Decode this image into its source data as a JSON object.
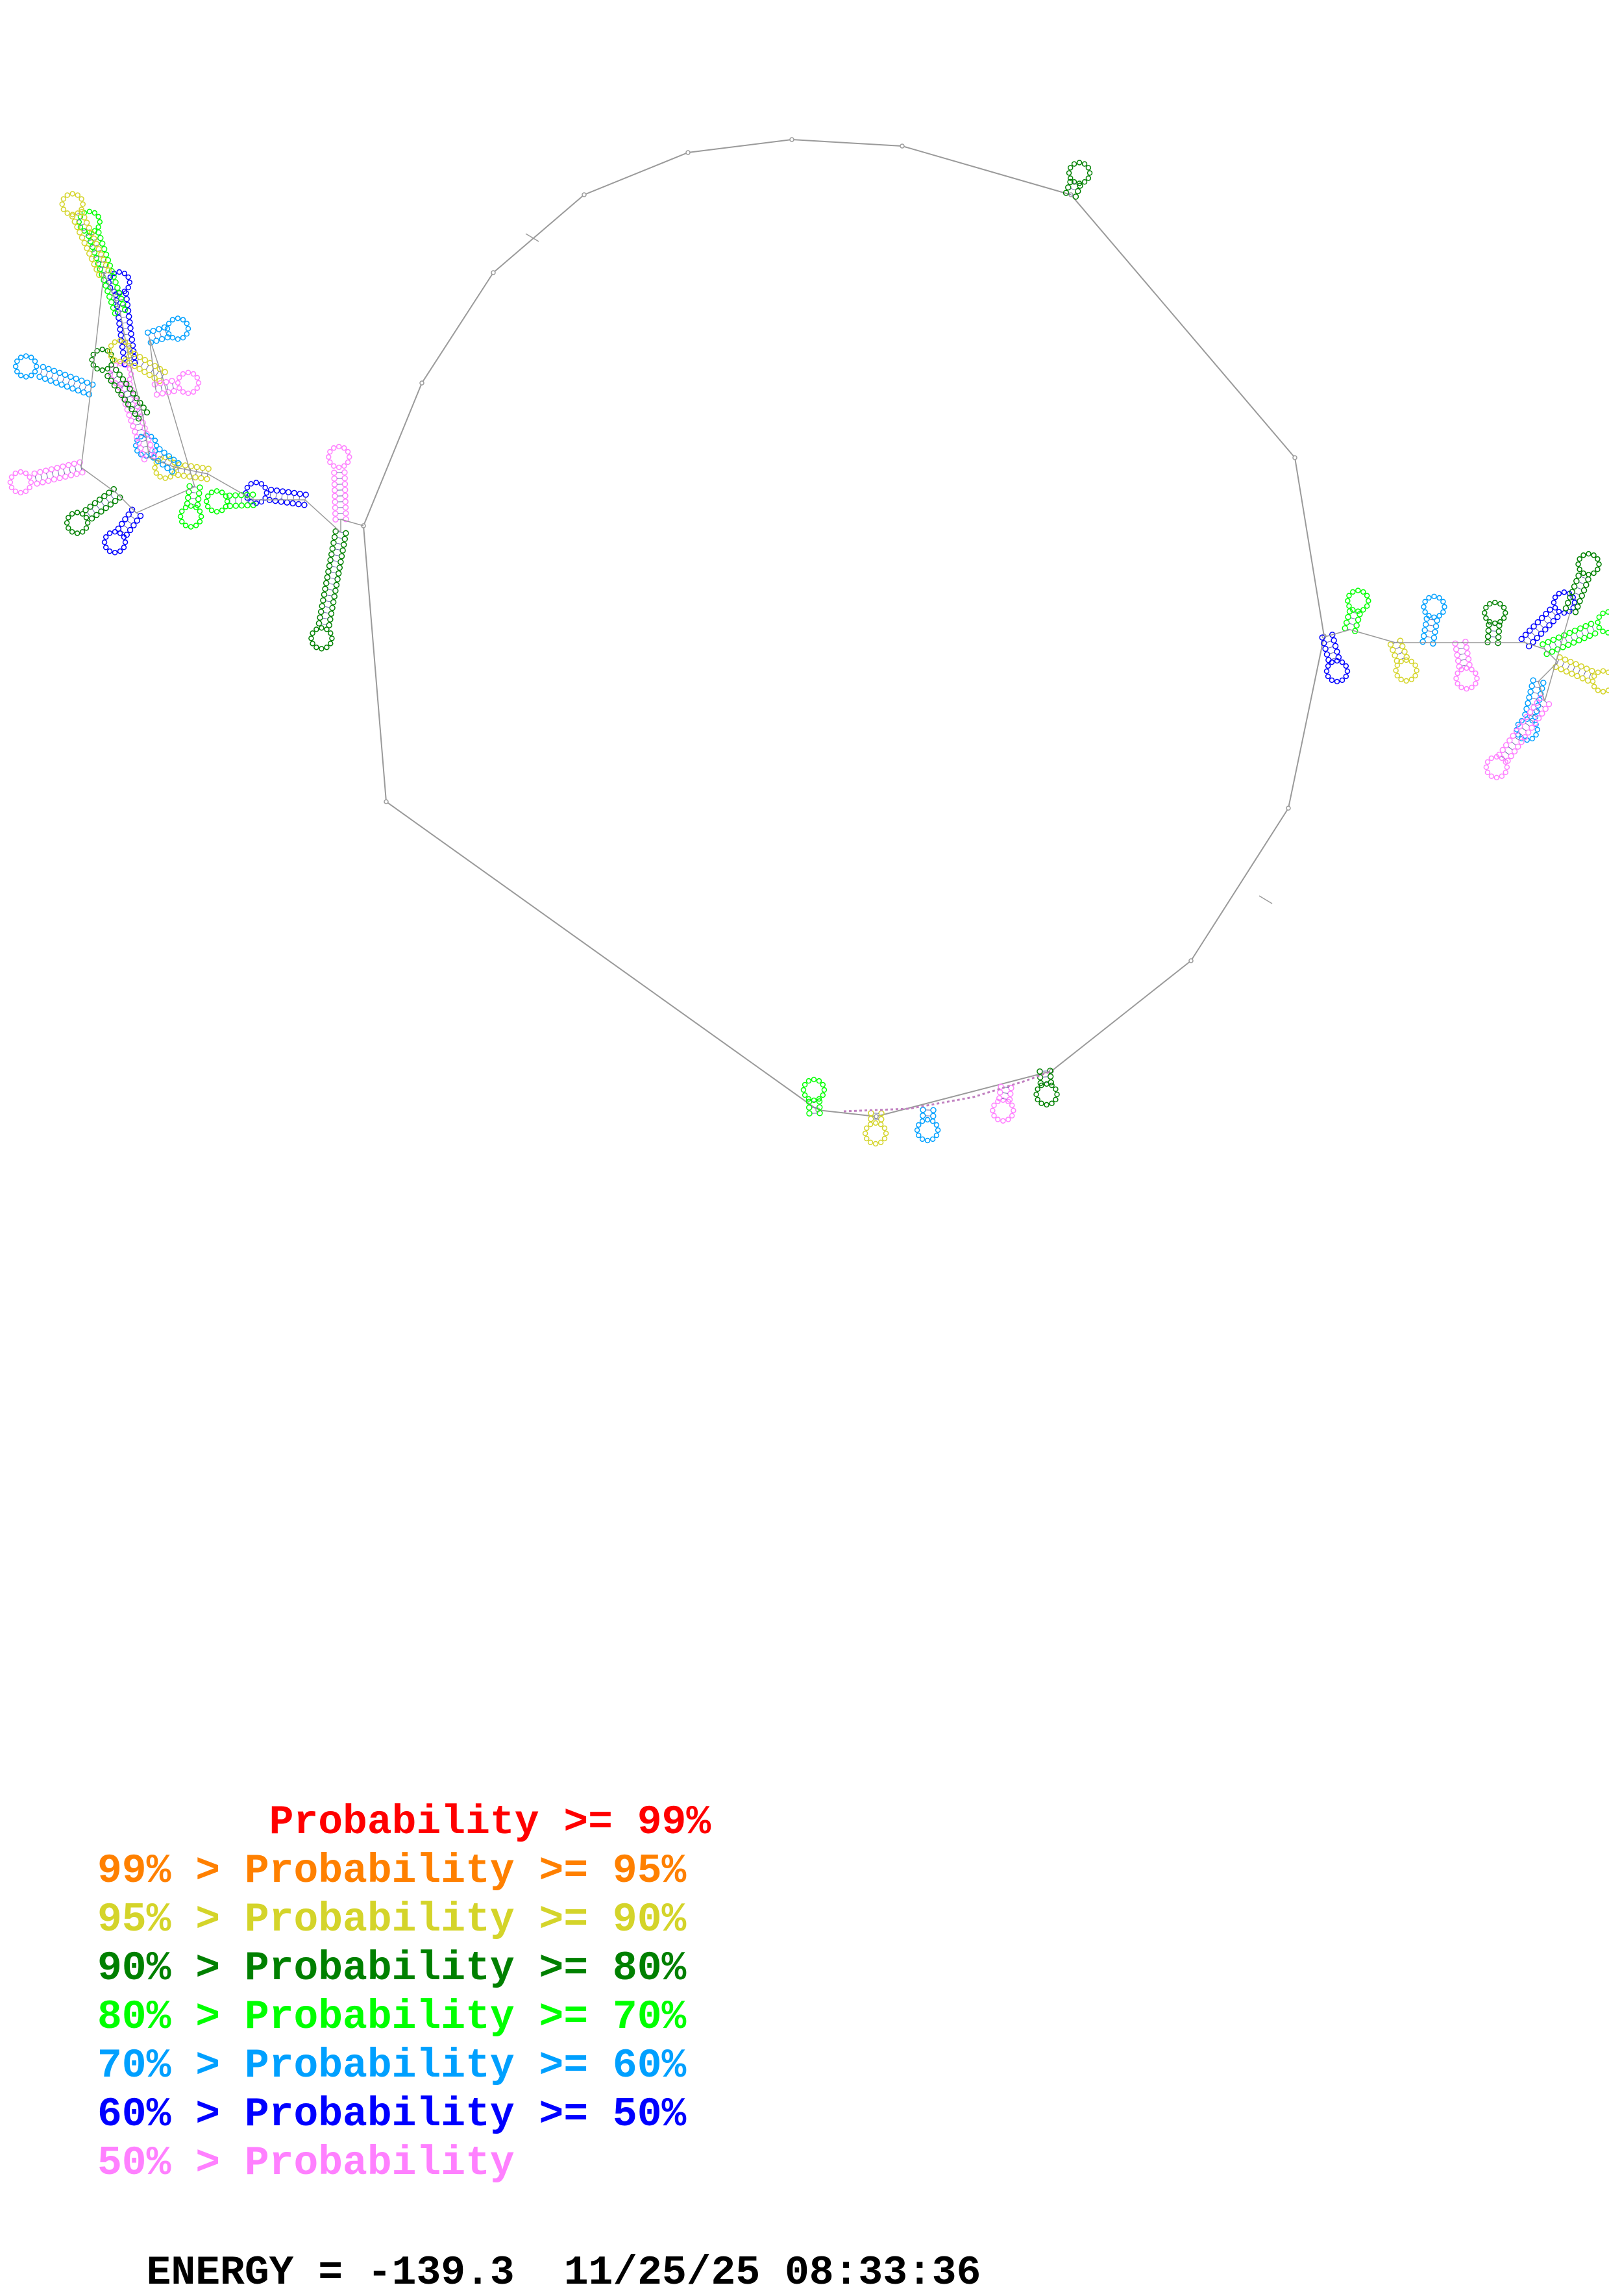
{
  "legend": [
    {
      "prefix": "       ",
      "text": "Probability >= 99%",
      "color": "#ff0000"
    },
    {
      "prefix": "",
      "text": "99% > Probability >= 95%",
      "color": "#ff8000"
    },
    {
      "prefix": "",
      "text": "95% > Probability >= 90%",
      "color": "#d4d42a"
    },
    {
      "prefix": "",
      "text": "90% > Probability >= 80%",
      "color": "#008000"
    },
    {
      "prefix": "",
      "text": "80% > Probability >= 70%",
      "color": "#00ff00"
    },
    {
      "prefix": "",
      "text": "70% > Probability >= 60%",
      "color": "#00a0ff"
    },
    {
      "prefix": "",
      "text": "60% > Probability >= 50%",
      "color": "#0000ff"
    },
    {
      "prefix": "",
      "text": "50% > Probability",
      "color": "#ff80ff"
    }
  ],
  "footer": {
    "energy": "ENERGY = -139.3",
    "timestamp": "11/25/25 08:33:36"
  },
  "colors": {
    "backbone": "#9a9a9a",
    "base_pair": "#6a6aaa"
  }
}
